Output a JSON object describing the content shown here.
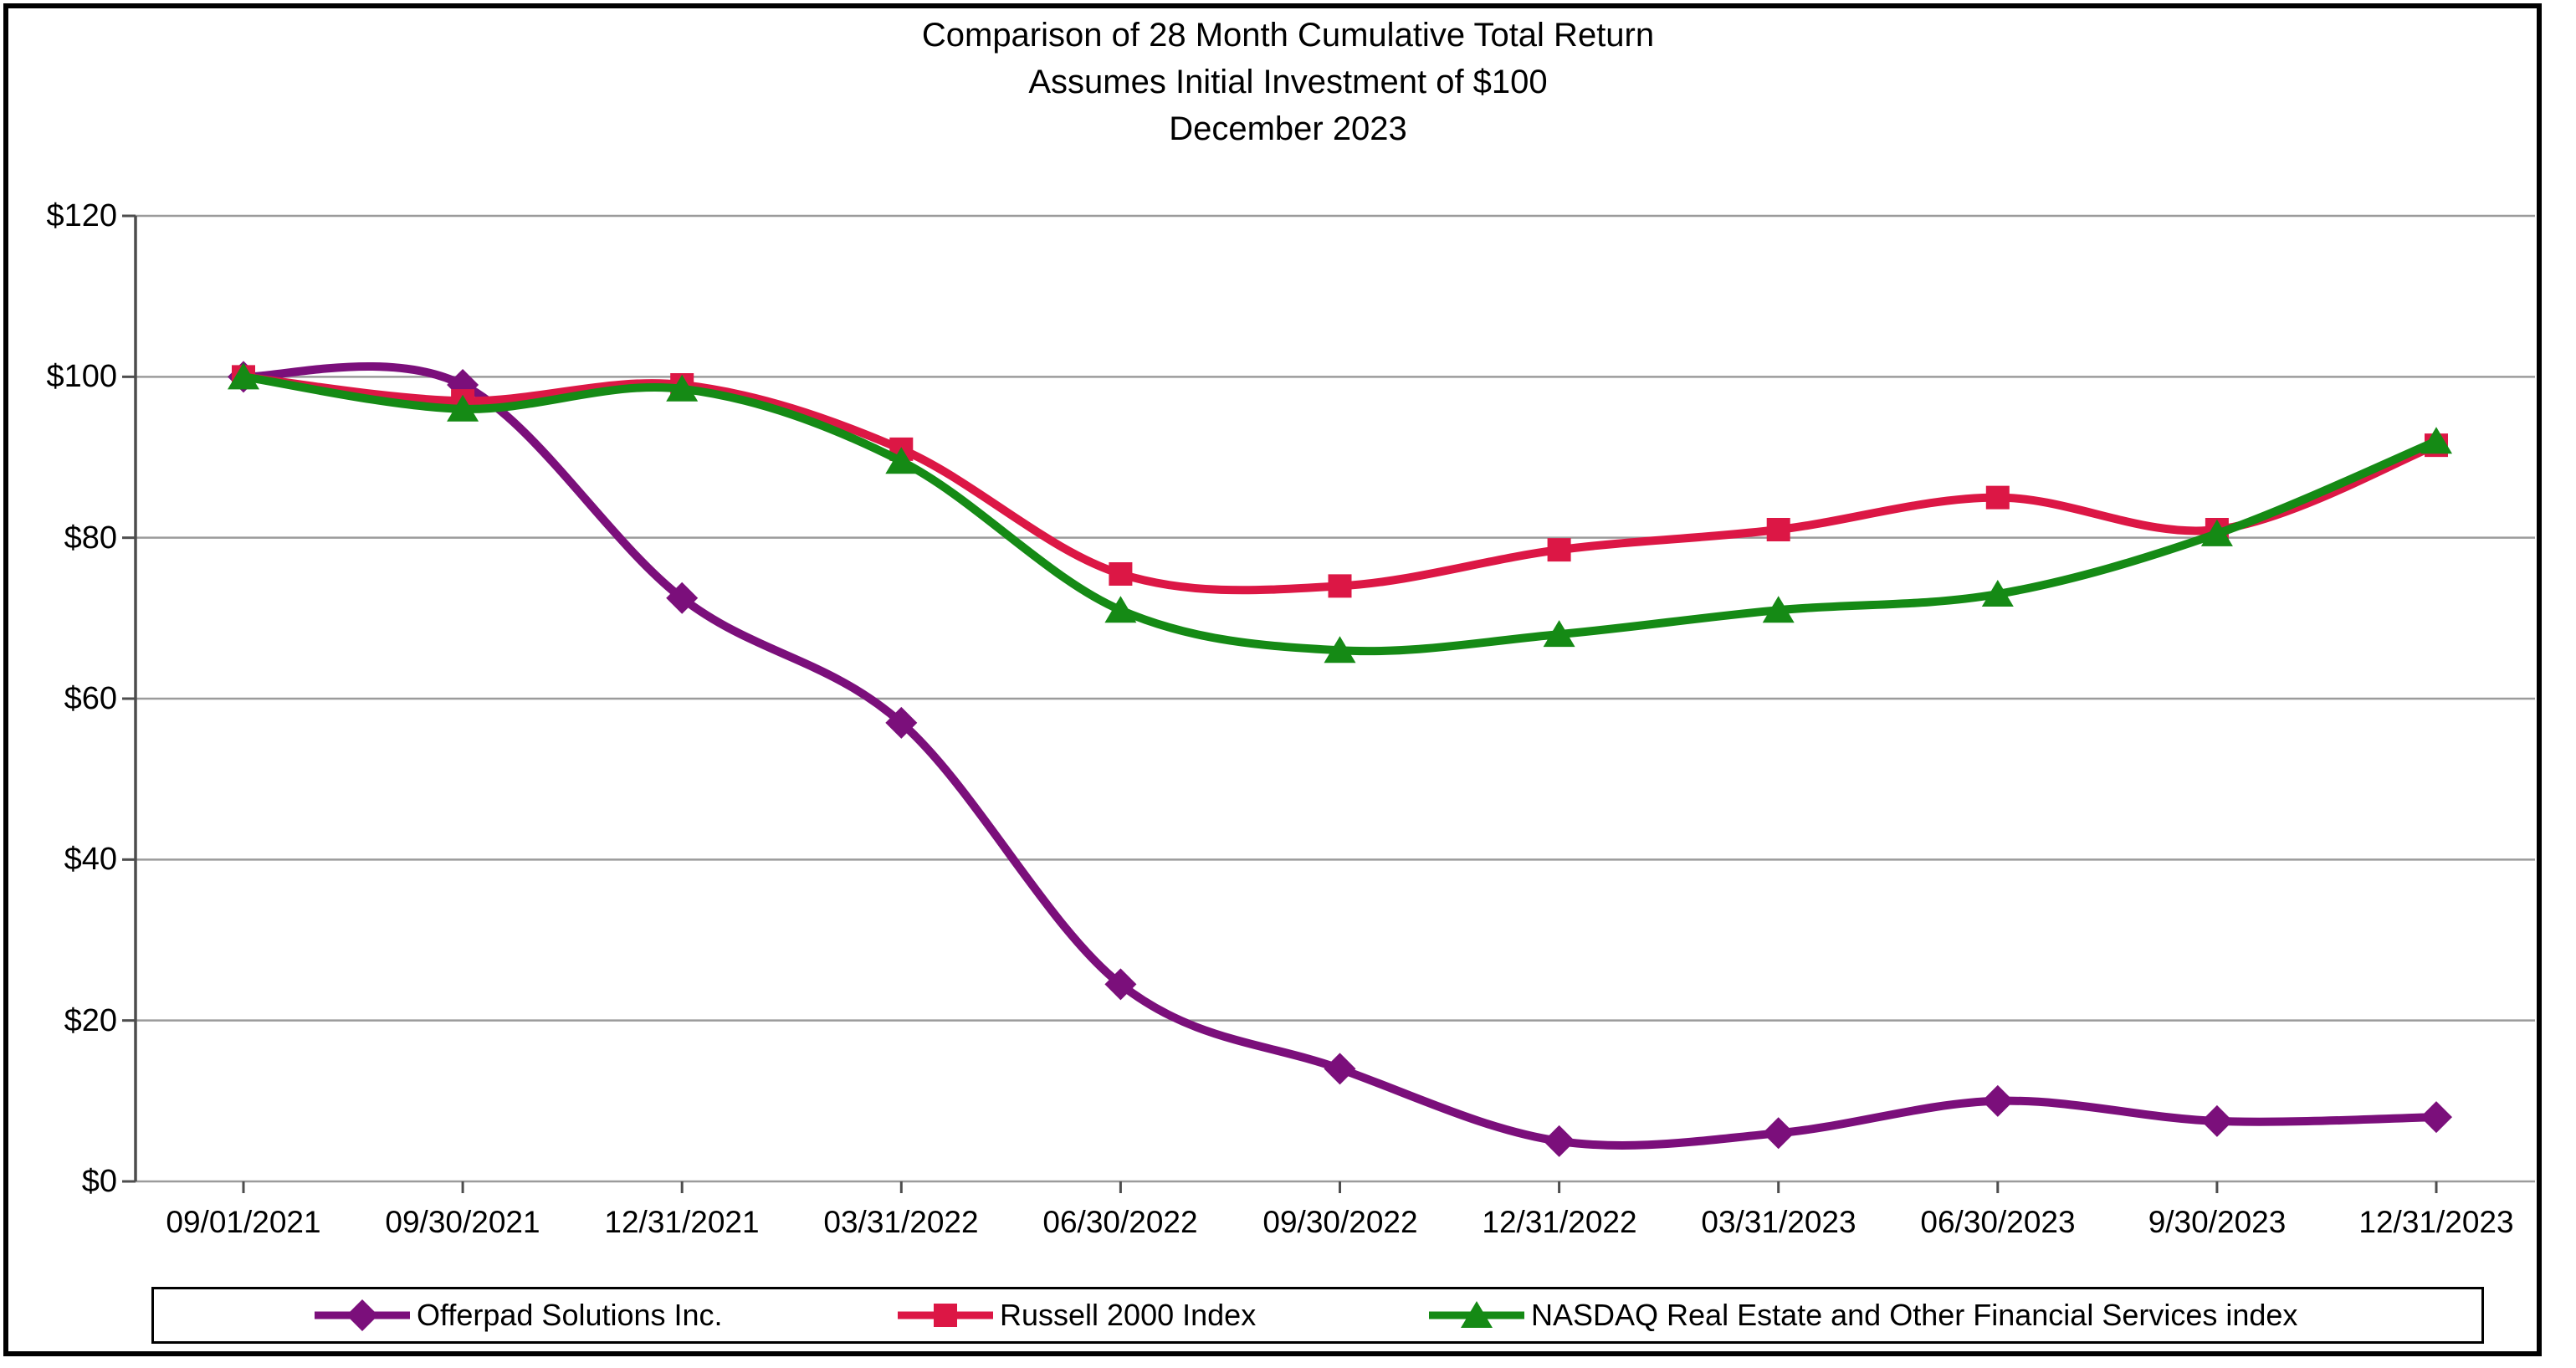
{
  "title": {
    "line1": "Comparison of 28 Month Cumulative Total Return",
    "line2": "Assumes Initial Investment of $100",
    "line3": "December 2023"
  },
  "chart_data": {
    "type": "line",
    "smoothed": true,
    "grid": "horizontal",
    "legend_position": "bottom",
    "categories": [
      "09/01/2021",
      "09/30/2021",
      "12/31/2021",
      "03/31/2022",
      "06/30/2022",
      "09/30/2022",
      "12/31/2022",
      "03/31/2023",
      "06/30/2023",
      "9/30/2023",
      "12/31/2023"
    ],
    "series": [
      {
        "name": "Offerpad Solutions Inc.",
        "marker": "diamond",
        "color": "#7B0F7B",
        "values": [
          100,
          99,
          72.5,
          57,
          24.5,
          14,
          5,
          6,
          10,
          7.5,
          8
        ]
      },
      {
        "name": "Russell 2000 Index",
        "marker": "square",
        "color": "#DC1745",
        "values": [
          100,
          97,
          99,
          91,
          75.5,
          74,
          78.5,
          81,
          85,
          81,
          91.5
        ]
      },
      {
        "name": "NASDAQ Real Estate and Other Financial Services index",
        "marker": "triangle",
        "color": "#158A15",
        "values": [
          100,
          96,
          98.5,
          89.5,
          71,
          66,
          68,
          71,
          73,
          80.5,
          92
        ]
      }
    ],
    "ylabel_ticks": [
      "$0",
      "$20",
      "$40",
      "$60",
      "$80",
      "$100",
      "$120"
    ],
    "ylim": [
      0,
      120
    ],
    "ystep": 20,
    "xlabel": "",
    "ylabel": ""
  },
  "colors": {
    "background": "#FFFFFF",
    "text": "#000000",
    "grid": "#9B9B9B",
    "axis": "#4D4D4D",
    "frame_border": "#000000"
  }
}
